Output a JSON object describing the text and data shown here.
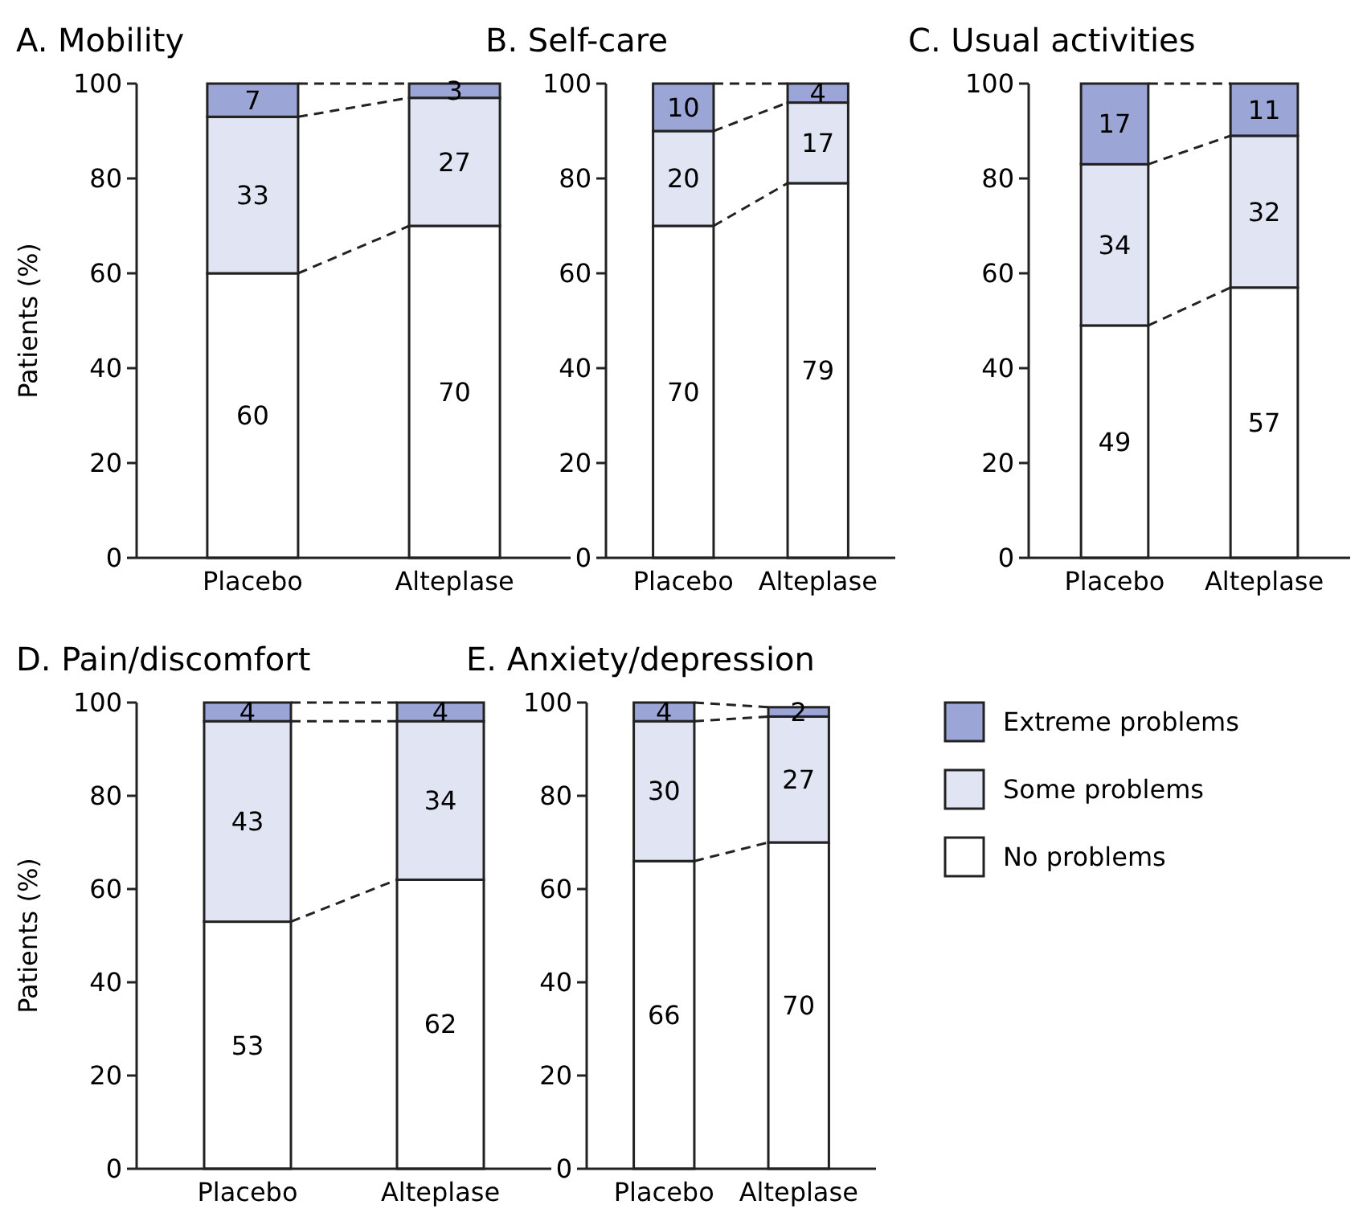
{
  "chart_data": [
    {
      "type": "bar",
      "title": "A. Mobility",
      "ylabel": "Patients (%)",
      "categories": [
        "Placebo",
        "Alteplase"
      ],
      "stacked": true,
      "data_labels": true,
      "ylim": [
        0,
        100
      ],
      "yticks": [
        0,
        20,
        40,
        60,
        80,
        100
      ],
      "series": [
        {
          "color": "#ffffff",
          "values": [
            60,
            70
          ]
        },
        {
          "color": "#e1e4f3",
          "values": [
            33,
            27
          ]
        },
        {
          "color": "#9ba6d6",
          "values": [
            7,
            3
          ]
        }
      ]
    },
    {
      "type": "bar",
      "title": "B. Self-care",
      "categories": [
        "Placebo",
        "Alteplase"
      ],
      "stacked": true,
      "data_labels": true,
      "ylim": [
        0,
        100
      ],
      "yticks": [
        0,
        20,
        40,
        60,
        80,
        100
      ],
      "series": [
        {
          "color": "#ffffff",
          "values": [
            70,
            79
          ]
        },
        {
          "color": "#e1e4f3",
          "values": [
            20,
            17
          ]
        },
        {
          "color": "#9ba6d6",
          "values": [
            10,
            4
          ]
        }
      ]
    },
    {
      "type": "bar",
      "title": "C. Usual activities",
      "categories": [
        "Placebo",
        "Alteplase"
      ],
      "stacked": true,
      "data_labels": true,
      "ylim": [
        0,
        100
      ],
      "yticks": [
        0,
        20,
        40,
        60,
        80,
        100
      ],
      "series": [
        {
          "color": "#ffffff",
          "values": [
            49,
            57
          ]
        },
        {
          "color": "#e1e4f3",
          "values": [
            34,
            32
          ]
        },
        {
          "color": "#9ba6d6",
          "values": [
            17,
            11
          ]
        }
      ]
    },
    {
      "type": "bar",
      "title": "D. Pain/discomfort",
      "ylabel": "Patients (%)",
      "categories": [
        "Placebo",
        "Alteplase"
      ],
      "stacked": true,
      "data_labels": true,
      "ylim": [
        0,
        100
      ],
      "yticks": [
        0,
        20,
        40,
        60,
        80,
        100
      ],
      "series": [
        {
          "color": "#ffffff",
          "values": [
            53,
            62
          ]
        },
        {
          "color": "#e1e4f3",
          "values": [
            43,
            34
          ]
        },
        {
          "color": "#9ba6d6",
          "values": [
            4,
            4
          ]
        }
      ]
    },
    {
      "type": "bar",
      "title": "E. Anxiety/depression",
      "categories": [
        "Placebo",
        "Alteplase"
      ],
      "stacked": true,
      "data_labels": true,
      "ylim": [
        0,
        100
      ],
      "yticks": [
        0,
        20,
        40,
        60,
        80,
        100
      ],
      "legend": "right",
      "series": [
        {
          "name": "No problems",
          "color": "#ffffff",
          "values": [
            66,
            70
          ]
        },
        {
          "name": "Some problems",
          "color": "#e1e4f3",
          "values": [
            30,
            27
          ]
        },
        {
          "name": "Extreme problems",
          "color": "#9ba6d6",
          "values": [
            4,
            2
          ]
        }
      ]
    }
  ]
}
